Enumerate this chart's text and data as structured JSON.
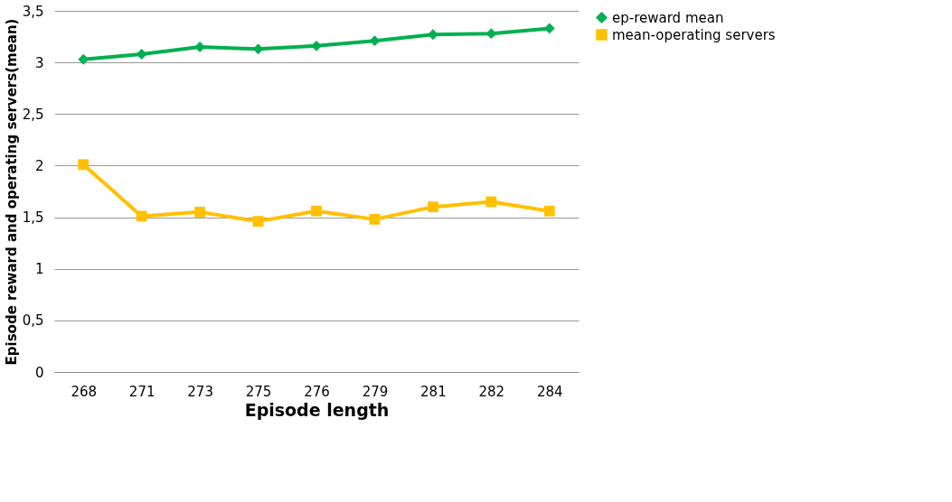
{
  "chart_data": {
    "type": "line",
    "xlabel": "Episode  length",
    "ylabel": "Episode reward and  operating servers(mean)",
    "categories": [
      "268",
      "271",
      "273",
      "275",
      "276",
      "279",
      "281",
      "282",
      "284"
    ],
    "series": [
      {
        "name": "ep-reward mean",
        "color": "#00b050",
        "marker": "diamond",
        "values": [
          3.03,
          3.08,
          3.15,
          3.13,
          3.16,
          3.21,
          3.27,
          3.28,
          3.33
        ]
      },
      {
        "name": "mean-operating servers",
        "color": "#ffc000",
        "marker": "square",
        "values": [
          2.01,
          1.51,
          1.55,
          1.46,
          1.56,
          1.48,
          1.6,
          1.65,
          1.56
        ]
      }
    ],
    "ylim": [
      0,
      3.5
    ],
    "yticks": [
      0,
      {
        "value": 0.5,
        "label": "0,5"
      },
      1,
      {
        "value": 1.5,
        "label": "1,5"
      },
      2,
      {
        "value": 2.5,
        "label": "2,5"
      },
      3,
      {
        "value": 3.5,
        "label": "3,5"
      }
    ],
    "grid": "y",
    "legend": "right",
    "line_style": "solid"
  }
}
